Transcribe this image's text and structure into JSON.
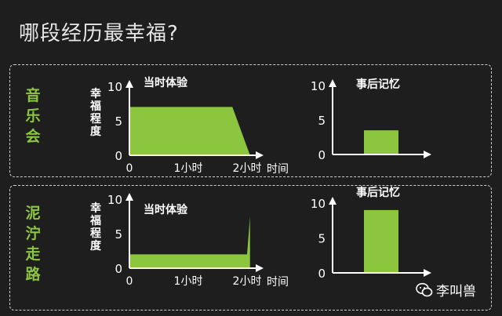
{
  "title": "哪段经历最幸福?",
  "rows": [
    {
      "label": "音乐会"
    },
    {
      "label": "泥泞走路"
    }
  ],
  "watermark": "李叫兽",
  "colors": {
    "fill": "#8cc63f",
    "axis": "#ffffff",
    "label": "#8cc63f"
  },
  "chart_data": [
    {
      "type": "area",
      "title": "当时体验",
      "ylabel": "幸福程度",
      "xlabel": "时间",
      "ylim": [
        0,
        10
      ],
      "yticks": [
        0,
        5,
        10
      ],
      "xticks": [
        {
          "v": 0,
          "label": "0"
        },
        {
          "v": 1,
          "label": "1小时"
        },
        {
          "v": 2,
          "label": "2小时"
        }
      ],
      "xlim": [
        0,
        2.2
      ],
      "x": [
        0,
        1.75,
        2.05
      ],
      "y": [
        7,
        7,
        0
      ]
    },
    {
      "type": "bar",
      "title": "事后记忆",
      "ylim": [
        0,
        10
      ],
      "yticks": [
        0,
        5,
        10
      ],
      "values": [
        3.5
      ]
    },
    {
      "type": "area",
      "title": "当时体验",
      "ylabel": "幸福程度",
      "xlabel": "时间",
      "ylim": [
        0,
        10
      ],
      "yticks": [
        0,
        5,
        10
      ],
      "xticks": [
        {
          "v": 0,
          "label": "0"
        },
        {
          "v": 1,
          "label": "1小时"
        },
        {
          "v": 2,
          "label": "2小时"
        }
      ],
      "xlim": [
        0,
        2.2
      ],
      "x": [
        0,
        1.75,
        2.0,
        2.05
      ],
      "y": [
        2,
        2,
        2,
        7.5
      ]
    },
    {
      "type": "bar",
      "title": "事后记忆",
      "ylim": [
        0,
        10
      ],
      "yticks": [
        0,
        5,
        10
      ],
      "values": [
        9
      ]
    }
  ]
}
